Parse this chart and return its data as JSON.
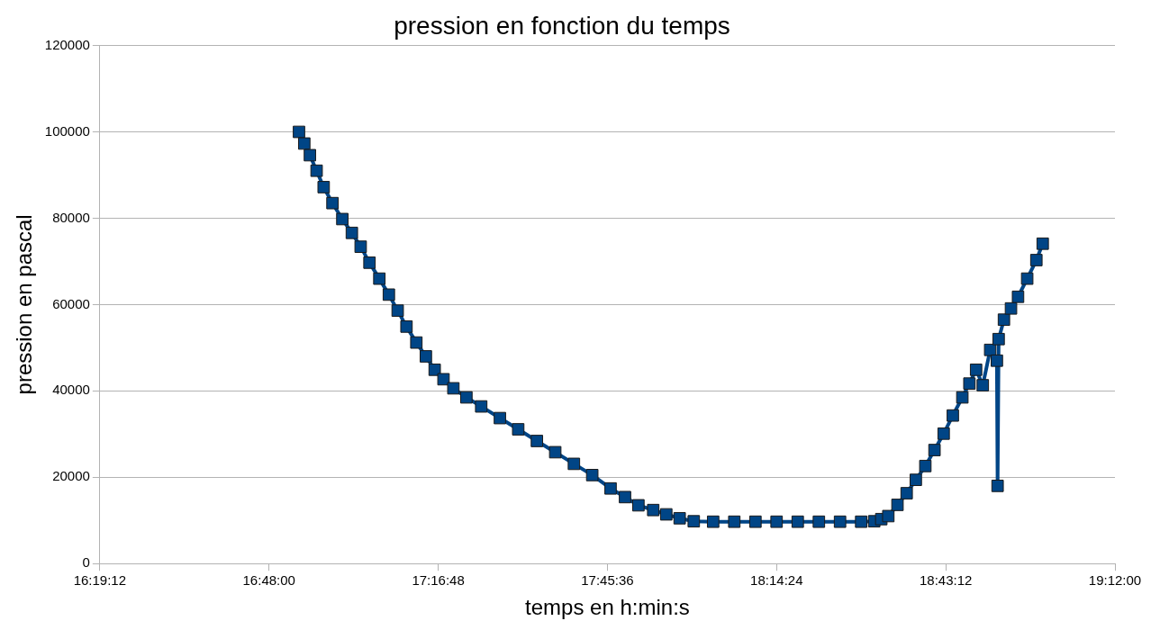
{
  "chart_data": {
    "type": "line",
    "title": "pression en fonction du temps",
    "xlabel": "temps en h:min:s",
    "ylabel": "pression en pascal",
    "xlim": [
      16.32,
      19.2
    ],
    "xticks": [
      {
        "value": 16.32,
        "label": "16:19:12"
      },
      {
        "value": 16.8,
        "label": "16:48:00"
      },
      {
        "value": 17.28,
        "label": "17:16:48"
      },
      {
        "value": 17.76,
        "label": "17:45:36"
      },
      {
        "value": 18.24,
        "label": "18:14:24"
      },
      {
        "value": 18.72,
        "label": "18:43:12"
      },
      {
        "value": 19.2,
        "label": "19:12:00"
      }
    ],
    "ylim": [
      0,
      120000
    ],
    "yticks": [
      0,
      20000,
      40000,
      60000,
      80000,
      100000,
      120000
    ],
    "grid": "y",
    "legend": false,
    "marker": "square",
    "line_style": "solid",
    "series": [
      {
        "color": "#004586",
        "x": [
          16.885,
          16.9,
          16.916,
          16.935,
          16.955,
          16.98,
          17.008,
          17.035,
          17.06,
          17.085,
          17.113,
          17.14,
          17.165,
          17.19,
          17.218,
          17.245,
          17.27,
          17.295,
          17.323,
          17.36,
          17.402,
          17.455,
          17.507,
          17.56,
          17.612,
          17.665,
          17.717,
          17.769,
          17.81,
          17.848,
          17.89,
          17.927,
          17.965,
          18.005,
          18.06,
          18.12,
          18.18,
          18.24,
          18.3,
          18.36,
          18.42,
          18.48,
          18.517,
          18.537,
          18.557,
          18.583,
          18.609,
          18.635,
          18.662,
          18.688,
          18.714,
          18.74,
          18.767,
          18.787,
          18.806,
          18.825,
          18.846,
          18.865,
          18.867,
          18.87,
          18.885,
          18.905,
          18.925,
          18.951,
          18.977,
          18.995
        ],
        "values": [
          100000,
          97300,
          94600,
          91000,
          87200,
          83500,
          79800,
          76600,
          73400,
          69700,
          66000,
          62300,
          58600,
          54900,
          51200,
          48000,
          44900,
          42700,
          40600,
          38500,
          36400,
          33700,
          31100,
          28400,
          25800,
          23100,
          20500,
          17400,
          15400,
          13500,
          12400,
          11400,
          10500,
          9800,
          9700,
          9700,
          9700,
          9700,
          9700,
          9700,
          9700,
          9700,
          9800,
          10300,
          11000,
          13600,
          16300,
          19400,
          22600,
          26300,
          30100,
          34300,
          38500,
          41700,
          44900,
          41300,
          49500,
          47000,
          18000,
          52000,
          56500,
          59100,
          61800,
          66000,
          70300,
          74100
        ]
      }
    ]
  }
}
